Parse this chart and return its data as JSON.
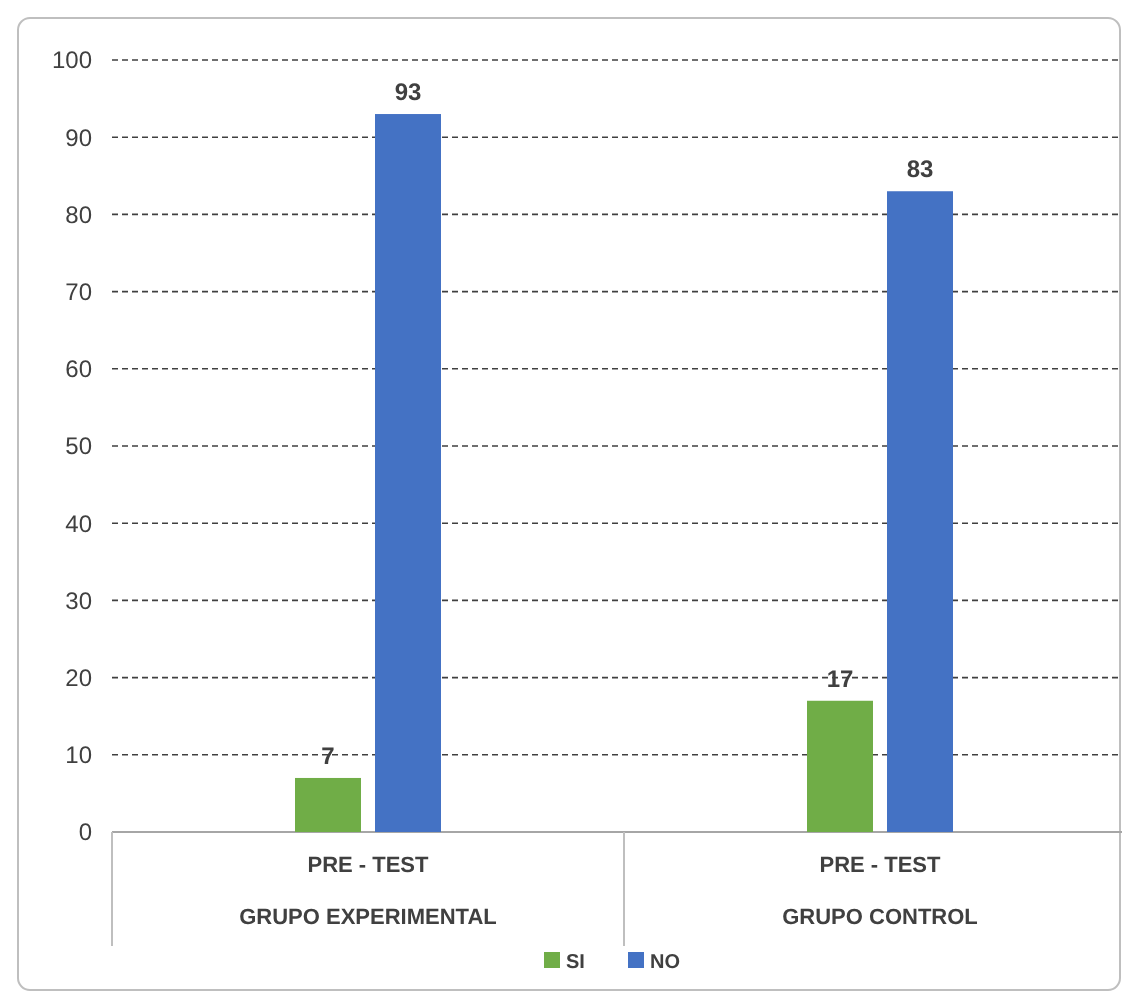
{
  "chart_data": {
    "type": "bar",
    "categories": [
      "PRE - TEST\nGRUPO EXPERIMENTAL",
      "PRE - TEST\nGRUPO CONTROL"
    ],
    "series": [
      {
        "name": "SI",
        "color": "#70ad47",
        "values": [
          7,
          17
        ]
      },
      {
        "name": "NO",
        "color": "#4472c4",
        "values": [
          93,
          83
        ]
      }
    ],
    "ylim": [
      0,
      100
    ],
    "yticks": [
      0,
      10,
      20,
      30,
      40,
      50,
      60,
      70,
      80,
      90,
      100
    ],
    "grid": "y",
    "legend": "bottom",
    "data_labels": true
  }
}
